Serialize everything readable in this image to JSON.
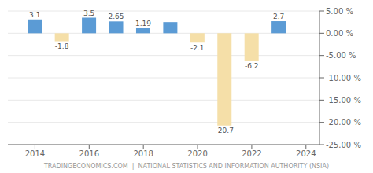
{
  "chart_data": {
    "type": "bar",
    "x": [
      2014,
      2015,
      2016,
      2017,
      2018,
      2019,
      2020,
      2021,
      2022,
      2023
    ],
    "values": [
      3.1,
      -1.8,
      3.5,
      2.65,
      1.19,
      2.5,
      -2.1,
      -20.7,
      -6.2,
      2.7
    ],
    "value_labels": [
      "3.1",
      "-1.8",
      "3.5",
      "2.65",
      "1.19",
      null,
      "-2.1",
      "-20.7",
      "-6.2",
      "2.7"
    ],
    "data_labels": true,
    "colors": [
      "#5b9bd5",
      "#f5dfa8",
      "#5b9bd5",
      "#5b9bd5",
      "#5b9bd5",
      "#5b9bd5",
      "#f5dfa8",
      "#f5dfa8",
      "#f5dfa8",
      "#5b9bd5"
    ],
    "xlim": [
      2013,
      2024.5
    ],
    "xticks": [
      2014,
      2016,
      2018,
      2020,
      2022,
      2024
    ],
    "ylim": [
      -25,
      5
    ],
    "yticks": [
      {
        "value": 5,
        "label": "5.00 %"
      },
      {
        "value": 0,
        "label": "0.00 %"
      },
      {
        "value": -5,
        "label": "-5.00 %"
      },
      {
        "value": -10,
        "label": "-10.00 %"
      },
      {
        "value": -15,
        "label": "-15.00 %"
      },
      {
        "value": -20,
        "label": "-20.00 %"
      },
      {
        "value": -25,
        "label": "-25.00 %"
      }
    ],
    "grid": true,
    "annotations": [
      "TRADINGECONOMICS.COM  |  NATIONAL STATISTICS AND INFORMATION AUTHORITY (NSIA)"
    ]
  }
}
